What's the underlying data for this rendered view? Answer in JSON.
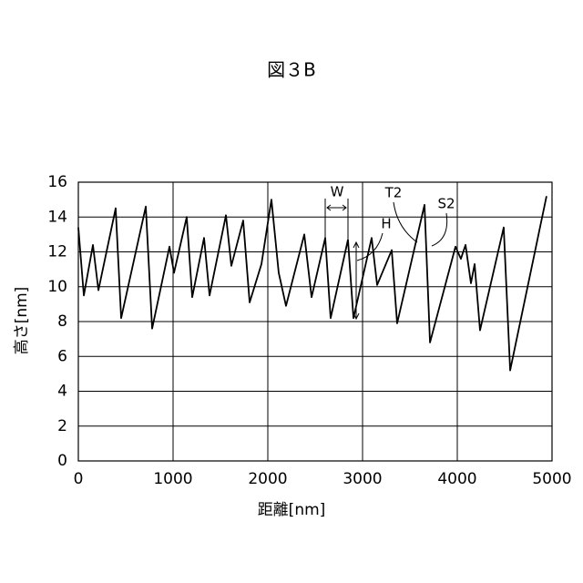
{
  "chart_data": {
    "type": "line",
    "title": "図３B",
    "x_label": "距離[nm]",
    "y_label": "高さ[nm]",
    "x": [
      0,
      58,
      154,
      212,
      394,
      452,
      712,
      779,
      962,
      1010,
      1144,
      1202,
      1327,
      1385,
      1558,
      1615,
      1740,
      1808,
      1933,
      2038,
      2115,
      2192,
      2385,
      2462,
      2606,
      2663,
      2846,
      2904,
      3096,
      3154,
      3308,
      3365,
      3654,
      3712,
      3981,
      4038,
      4087,
      4144,
      4183,
      4240,
      4490,
      4558,
      4942
    ],
    "series": [
      {
        "color": "#000000",
        "values": [
          13.4,
          9.5,
          12.4,
          9.8,
          14.5,
          8.2,
          14.6,
          7.6,
          12.3,
          10.8,
          14.0,
          9.4,
          12.8,
          9.5,
          14.1,
          11.2,
          13.8,
          9.1,
          11.3,
          15.0,
          10.8,
          8.9,
          13.0,
          9.4,
          12.8,
          8.2,
          12.7,
          8.2,
          12.8,
          10.1,
          12.1,
          7.9,
          14.7,
          6.8,
          12.3,
          11.6,
          12.4,
          10.2,
          11.3,
          7.5,
          13.4,
          5.2,
          15.2
        ]
      }
    ],
    "xlim": [
      0,
      5000
    ],
    "xticks": [
      0,
      1000,
      2000,
      3000,
      4000,
      5000
    ],
    "ylim": [
      0,
      16
    ],
    "yticks": [
      0,
      2,
      4,
      6,
      8,
      10,
      12,
      14,
      16
    ],
    "grid": true,
    "annotations": [
      "W",
      "T2",
      "S2",
      "H"
    ]
  }
}
